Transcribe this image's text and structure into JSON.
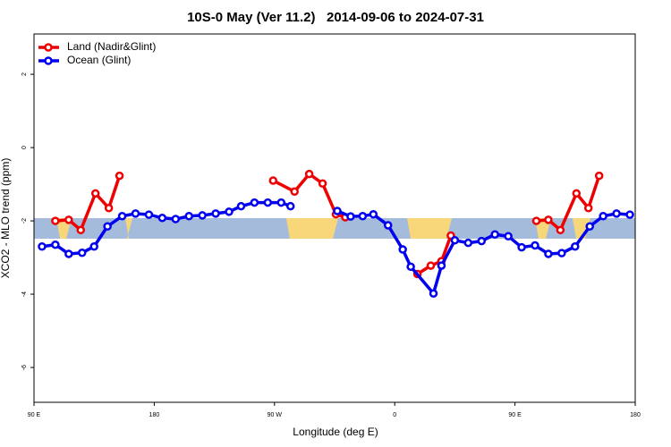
{
  "chart_data": {
    "type": "line",
    "title": "10S-0 May (Ver 11.2)   2014-09-06 to 2024-07-31",
    "x_label": "Longitude (deg E)",
    "y_label": "XCO2 - MLO trend (ppm)",
    "xlim": [
      90,
      540
    ],
    "xticks": [
      {
        "value": 90,
        "label": "90 E"
      },
      180,
      {
        "value": 270,
        "label": "90 W"
      },
      {
        "value": 360,
        "label": "0"
      },
      {
        "value": 450,
        "label": "90 E"
      },
      {
        "value": 540,
        "label": "180"
      }
    ],
    "ylim": [
      -6.95,
      3.1
    ],
    "yticks": [
      2,
      0,
      -2,
      -4,
      -6
    ],
    "legend": "top-left",
    "series": [
      {
        "name": "Land (Nadir&Glint)",
        "color": "#ee0000",
        "x": [
          106,
          116,
          125,
          136,
          146,
          154,
          null,
          269,
          285,
          296,
          306,
          316,
          323,
          null,
          377,
          387,
          395,
          402,
          null,
          466,
          475,
          484,
          496,
          505,
          513
        ],
        "values": [
          -2.0,
          -1.97,
          -2.25,
          -1.25,
          -1.65,
          -0.77,
          null,
          -0.9,
          -1.2,
          -0.72,
          -0.98,
          -1.82,
          -1.9,
          null,
          -3.45,
          -3.22,
          -3.1,
          -2.4,
          null,
          -2.0,
          -1.97,
          -2.25,
          -1.25,
          -1.65,
          -0.77
        ]
      },
      {
        "name": "Ocean (Glint)",
        "color": "#0000ee",
        "x": [
          96,
          106,
          116,
          126,
          135,
          145,
          156,
          166,
          176,
          186,
          196,
          206,
          216,
          226,
          236,
          245,
          255,
          265,
          275,
          282,
          null,
          317,
          327,
          336,
          344,
          355,
          366,
          372,
          389,
          395,
          405,
          415,
          425,
          435,
          445,
          455,
          465,
          475,
          485,
          495,
          506,
          516,
          526,
          536
        ],
        "values": [
          -2.7,
          -2.65,
          -2.9,
          -2.87,
          -2.7,
          -2.15,
          -1.87,
          -1.8,
          -1.83,
          -1.92,
          -1.95,
          -1.87,
          -1.85,
          -1.8,
          -1.75,
          -1.6,
          -1.5,
          -1.5,
          -1.5,
          -1.6,
          null,
          -1.73,
          -1.88,
          -1.87,
          -1.82,
          -2.12,
          -2.78,
          -3.25,
          -3.98,
          -3.22,
          -2.53,
          -2.6,
          -2.55,
          -2.37,
          -2.42,
          -2.72,
          -2.67,
          -2.9,
          -2.88,
          -2.7,
          -2.15,
          -1.87,
          -1.8,
          -1.83
        ]
      }
    ]
  }
}
